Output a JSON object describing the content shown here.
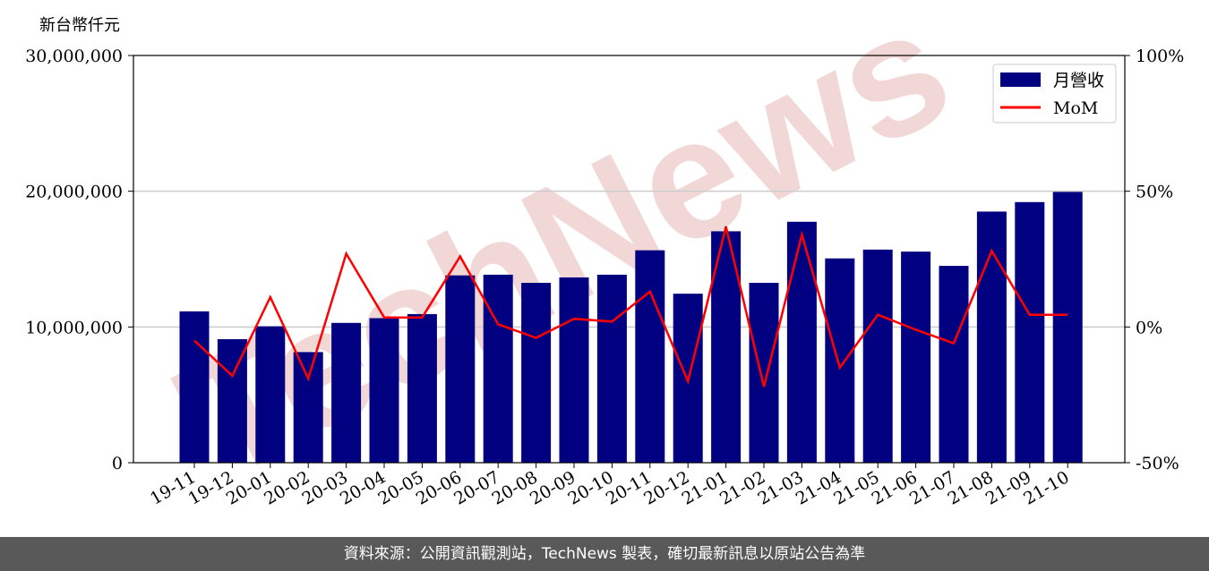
{
  "unit_label": "新台幣仟元",
  "footer": "資料來源：公開資訊觀測站，TechNews 製表，確切最新訊息以原站公告為準",
  "watermark": "TechNews",
  "colors": {
    "bar": "#000080",
    "line": "#ff0000",
    "grid": "#cccccc",
    "watermark": "#e3a8a8"
  },
  "chart_data": {
    "type": "bar",
    "categories": [
      "19-11",
      "19-12",
      "20-01",
      "20-02",
      "20-03",
      "20-04",
      "20-05",
      "20-06",
      "20-07",
      "20-08",
      "20-09",
      "20-10",
      "20-11",
      "20-12",
      "21-01",
      "21-02",
      "21-03",
      "21-04",
      "21-05",
      "21-06",
      "21-07",
      "21-08",
      "21-09",
      "21-10"
    ],
    "series": [
      {
        "name": "月營收",
        "type": "bar",
        "axis": "left",
        "values": [
          11150000,
          9100000,
          10050000,
          8150000,
          10300000,
          10650000,
          10950000,
          13800000,
          13850000,
          13250000,
          13650000,
          13850000,
          15650000,
          12450000,
          17050000,
          13250000,
          17750000,
          15050000,
          15700000,
          15550000,
          14500000,
          18500000,
          19200000,
          19950000
        ]
      },
      {
        "name": "MoM",
        "type": "line",
        "axis": "right",
        "values": [
          -5,
          -18,
          11,
          -19,
          27,
          3.5,
          3.5,
          26,
          1,
          -4,
          3,
          2,
          13,
          -20,
          37,
          -22,
          34,
          -15,
          4.5,
          -1,
          -6,
          28,
          4.5,
          4.5
        ]
      }
    ],
    "left_axis": {
      "ylim": [
        0,
        30000000
      ],
      "ticks": [
        "0",
        "10,000,000",
        "20,000,000",
        "30,000,000"
      ]
    },
    "right_axis": {
      "ylim": [
        -50,
        100
      ],
      "ticks": [
        "-50%",
        "0%",
        "50%",
        "100%"
      ]
    },
    "grid": true,
    "legend_position": "top-right"
  }
}
